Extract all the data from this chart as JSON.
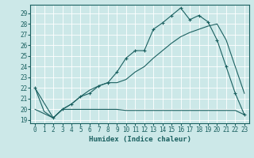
{
  "xlabel": "Humidex (Indice chaleur)",
  "bg_color": "#cce8e8",
  "line_color": "#1a6060",
  "grid_color": "#ffffff",
  "x_ticks": [
    0,
    1,
    2,
    3,
    4,
    5,
    6,
    7,
    8,
    9,
    10,
    11,
    12,
    13,
    14,
    15,
    16,
    17,
    18,
    19,
    20,
    21,
    22,
    23
  ],
  "y_ticks": [
    19,
    20,
    21,
    22,
    23,
    24,
    25,
    26,
    27,
    28,
    29
  ],
  "ylim": [
    18.7,
    29.8
  ],
  "xlim": [
    -0.5,
    23.5
  ],
  "line1_x": [
    0,
    1,
    2,
    3,
    4,
    5,
    6,
    7,
    8,
    9,
    10,
    11,
    12,
    13,
    14,
    15,
    16,
    17,
    18,
    19,
    20,
    21,
    22,
    23
  ],
  "line1_y": [
    22.0,
    19.8,
    19.2,
    20.0,
    20.0,
    20.0,
    20.0,
    20.0,
    20.0,
    20.0,
    19.9,
    19.9,
    19.9,
    19.9,
    19.9,
    19.9,
    19.9,
    19.9,
    19.9,
    19.9,
    19.9,
    19.9,
    19.9,
    19.5
  ],
  "line2_x": [
    0,
    2,
    3,
    4,
    5,
    6,
    7,
    8,
    9,
    10,
    11,
    12,
    13,
    14,
    15,
    16,
    17,
    18,
    19,
    20,
    21,
    22,
    23
  ],
  "line2_y": [
    22.0,
    19.2,
    20.0,
    20.5,
    21.2,
    21.5,
    22.2,
    22.5,
    23.5,
    24.8,
    25.5,
    25.5,
    27.5,
    28.1,
    28.8,
    29.5,
    28.4,
    28.8,
    28.2,
    26.5,
    24.0,
    21.5,
    19.5
  ],
  "line3_x": [
    0,
    2,
    3,
    4,
    5,
    6,
    7,
    8,
    9,
    10,
    11,
    12,
    13,
    14,
    15,
    16,
    17,
    18,
    19,
    20,
    21,
    22,
    23
  ],
  "line3_y": [
    20.0,
    19.2,
    20.0,
    20.5,
    21.2,
    21.8,
    22.2,
    22.5,
    22.5,
    22.8,
    23.5,
    24.0,
    24.8,
    25.5,
    26.2,
    26.8,
    27.2,
    27.5,
    27.8,
    28.0,
    26.5,
    24.0,
    21.5
  ]
}
